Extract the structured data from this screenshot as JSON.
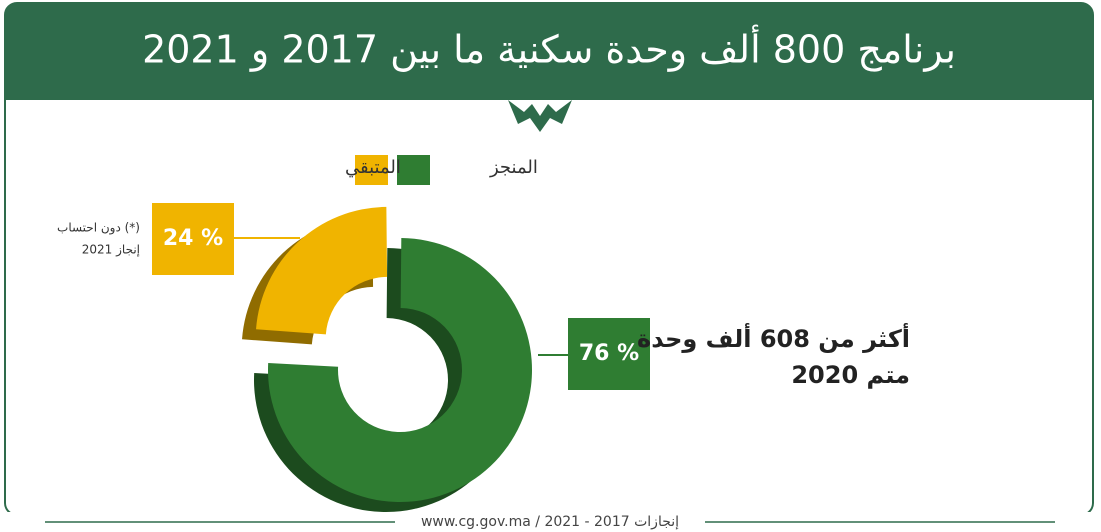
{
  "chart_data": {
    "type": "donut",
    "title": "برنامج 800 ألف وحدة سكنية ما بين 2017 و 2021",
    "categories": [
      "المنجز",
      "المتبقي"
    ],
    "values": [
      76,
      24
    ],
    "value_labels": [
      "76 %",
      "24 %"
    ],
    "colors": [
      "#2f7d32",
      "#f0b400"
    ],
    "annotation": [
      "أكثر من 608 ألف وحدة",
      "متم 2020"
    ],
    "footnote": [
      "(*) دون احتساب",
      "إنجاز 2021"
    ],
    "footer": "www.cg.gov.ma / 2021 - 2017 إنجازات"
  }
}
